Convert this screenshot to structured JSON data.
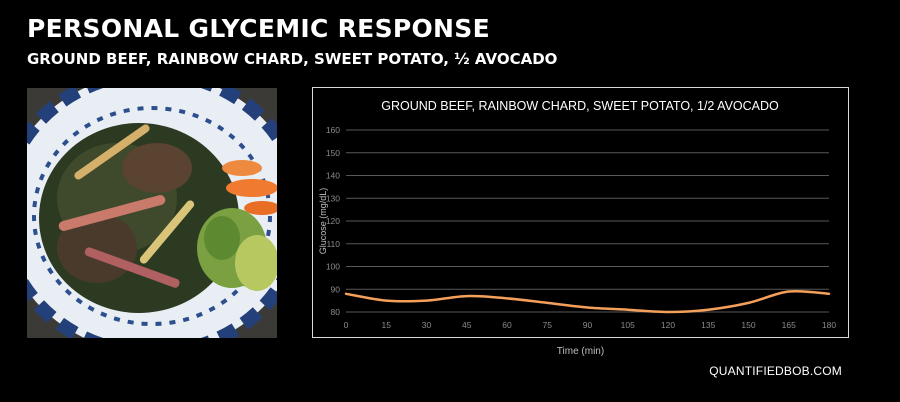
{
  "header": {
    "title": "PERSONAL GLYCEMIC RESPONSE",
    "subtitle": "GROUND BEEF, RAINBOW CHARD, SWEET POTATO, ½ AVOCADO"
  },
  "footer": {
    "brand": "QUANTIFIEDBOB.COM"
  },
  "colors": {
    "background": "#000000",
    "series": "#f5a05a",
    "grid": "#595959",
    "frame": "#d9d9d9"
  },
  "chart_data": {
    "type": "line",
    "title": "GROUND BEEF, RAINBOW CHARD, SWEET POTATO, 1/2 AVOCADO",
    "xlabel": "Time (min)",
    "ylabel": "Glucose (mg/dL)",
    "x_ticks": [
      0,
      15,
      30,
      45,
      60,
      75,
      90,
      105,
      120,
      135,
      150,
      165,
      180
    ],
    "y_ticks": [
      80,
      90,
      100,
      110,
      120,
      130,
      140,
      150,
      160
    ],
    "xlim": [
      0,
      180
    ],
    "ylim": [
      80,
      160
    ],
    "grid": "horizontal",
    "legend": "none",
    "series": [
      {
        "x": [
          0,
          15,
          30,
          45,
          60,
          75,
          90,
          105,
          120,
          135,
          150,
          165,
          180
        ],
        "values": [
          88,
          85,
          85,
          87,
          86,
          84,
          82,
          81,
          80,
          81,
          84,
          89,
          88
        ]
      }
    ]
  }
}
